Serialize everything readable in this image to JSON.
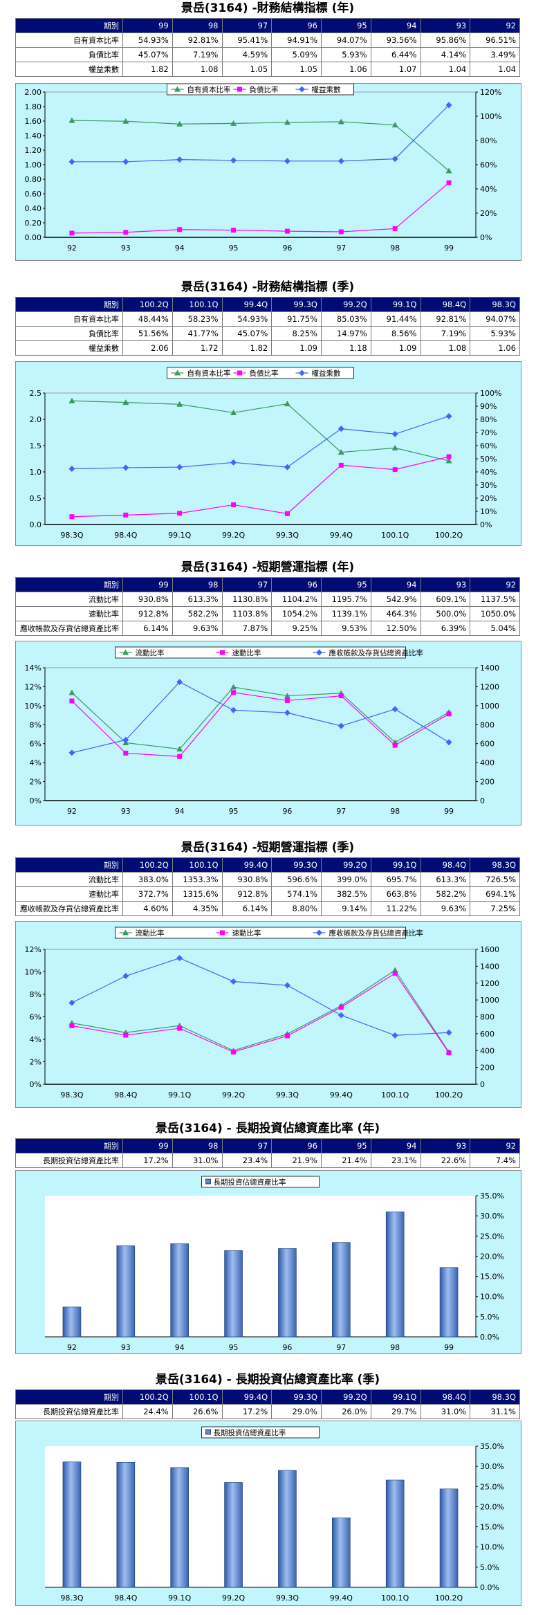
{
  "sections": [
    {
      "title": "景岳(3164) -財務結構指標 (年)",
      "header_label": "期別",
      "periods": [
        "99",
        "98",
        "97",
        "96",
        "95",
        "94",
        "93",
        "92"
      ],
      "rows": [
        {
          "label": "自有資本比率",
          "values": [
            "54.93%",
            "92.81%",
            "95.41%",
            "94.91%",
            "94.07%",
            "93.56%",
            "95.86%",
            "96.51%"
          ]
        },
        {
          "label": "負債比率",
          "values": [
            "45.07%",
            "7.19%",
            "4.59%",
            "5.09%",
            "5.93%",
            "6.44%",
            "4.14%",
            "3.49%"
          ]
        },
        {
          "label": "權益乘數",
          "values": [
            "1.82",
            "1.08",
            "1.05",
            "1.05",
            "1.06",
            "1.07",
            "1.04",
            "1.04"
          ]
        }
      ]
    },
    {
      "title": "景岳(3164) -財務結構指標 (季)",
      "header_label": "期別",
      "periods": [
        "100.2Q",
        "100.1Q",
        "99.4Q",
        "99.3Q",
        "99.2Q",
        "99.1Q",
        "98.4Q",
        "98.3Q"
      ],
      "rows": [
        {
          "label": "自有資本比率",
          "values": [
            "48.44%",
            "58.23%",
            "54.93%",
            "91.75%",
            "85.03%",
            "91.44%",
            "92.81%",
            "94.07%"
          ]
        },
        {
          "label": "負債比率",
          "values": [
            "51.56%",
            "41.77%",
            "45.07%",
            "8.25%",
            "14.97%",
            "8.56%",
            "7.19%",
            "5.93%"
          ]
        },
        {
          "label": "權益乘數",
          "values": [
            "2.06",
            "1.72",
            "1.82",
            "1.09",
            "1.18",
            "1.09",
            "1.08",
            "1.06"
          ]
        }
      ]
    },
    {
      "title": "景岳(3164) -短期營運指標 (年)",
      "header_label": "期別",
      "periods": [
        "99",
        "98",
        "97",
        "96",
        "95",
        "94",
        "93",
        "92"
      ],
      "rows": [
        {
          "label": "流動比率",
          "values": [
            "930.8%",
            "613.3%",
            "1130.8%",
            "1104.2%",
            "1195.7%",
            "542.9%",
            "609.1%",
            "1137.5%"
          ]
        },
        {
          "label": "速動比率",
          "values": [
            "912.8%",
            "582.2%",
            "1103.8%",
            "1054.2%",
            "1139.1%",
            "464.3%",
            "500.0%",
            "1050.0%"
          ]
        },
        {
          "label": "應收帳款及存貨佔總資產比率",
          "values": [
            "6.14%",
            "9.63%",
            "7.87%",
            "9.25%",
            "9.53%",
            "12.50%",
            "6.39%",
            "5.04%"
          ]
        }
      ]
    },
    {
      "title": "景岳(3164) -短期營運指標 (季)",
      "header_label": "期別",
      "periods": [
        "100.2Q",
        "100.1Q",
        "99.4Q",
        "99.3Q",
        "99.2Q",
        "99.1Q",
        "98.4Q",
        "98.3Q"
      ],
      "rows": [
        {
          "label": "流動比率",
          "values": [
            "383.0%",
            "1353.3%",
            "930.8%",
            "596.6%",
            "399.0%",
            "695.7%",
            "613.3%",
            "726.5%"
          ]
        },
        {
          "label": "速動比率",
          "values": [
            "372.7%",
            "1315.6%",
            "912.8%",
            "574.1%",
            "382.5%",
            "663.8%",
            "582.2%",
            "694.1%"
          ]
        },
        {
          "label": "應收帳款及存貨佔總資產比率",
          "values": [
            "4.60%",
            "4.35%",
            "6.14%",
            "8.80%",
            "9.14%",
            "11.22%",
            "9.63%",
            "7.25%"
          ]
        }
      ]
    },
    {
      "title": "景岳(3164) - 長期投資佔總資產比率 (年)",
      "header_label": "期別",
      "periods": [
        "99",
        "98",
        "97",
        "96",
        "95",
        "94",
        "93",
        "92"
      ],
      "rows": [
        {
          "label": "長期投資佔總資產比率",
          "values": [
            "17.2%",
            "31.0%",
            "23.4%",
            "21.9%",
            "21.4%",
            "23.1%",
            "22.6%",
            "7.4%"
          ]
        }
      ]
    },
    {
      "title": "景岳(3164) - 長期投資佔總資產比率 (季)",
      "header_label": "期別",
      "periods": [
        "100.2Q",
        "100.1Q",
        "99.4Q",
        "99.3Q",
        "99.2Q",
        "99.1Q",
        "98.4Q",
        "98.3Q"
      ],
      "rows": [
        {
          "label": "長期投資佔總資產比率",
          "values": [
            "24.4%",
            "26.6%",
            "17.2%",
            "29.0%",
            "26.0%",
            "29.7%",
            "31.0%",
            "31.1%"
          ]
        }
      ]
    }
  ],
  "chart_data": [
    {
      "type": "line",
      "categories": [
        "92",
        "93",
        "94",
        "95",
        "96",
        "97",
        "98",
        "99"
      ],
      "y_left": {
        "min": 0,
        "max": 2.0,
        "step": 0.2,
        "ticks": [
          "0.00",
          "0.20",
          "0.40",
          "0.60",
          "0.80",
          "1.00",
          "1.20",
          "1.40",
          "1.60",
          "1.80",
          "2.00"
        ]
      },
      "y_right": {
        "min": 0,
        "max": 120,
        "step": 20,
        "ticks": [
          "0%",
          "20%",
          "40%",
          "60%",
          "80%",
          "100%",
          "120%"
        ]
      },
      "series": [
        {
          "name": "自有資本比率",
          "color": "#3a9a5e",
          "marker": "triangle",
          "axis": "right",
          "values": [
            96.51,
            95.86,
            93.56,
            94.07,
            94.91,
            95.41,
            92.81,
            54.93
          ]
        },
        {
          "name": "負債比率",
          "color": "#ff00ff",
          "marker": "square",
          "axis": "right",
          "values": [
            3.49,
            4.14,
            6.44,
            5.93,
            5.09,
            4.59,
            7.19,
            45.07
          ]
        },
        {
          "name": "權益乘數",
          "color": "#3f66ff",
          "marker": "diamond",
          "axis": "left",
          "values": [
            1.04,
            1.04,
            1.07,
            1.06,
            1.05,
            1.05,
            1.08,
            1.82
          ]
        }
      ]
    },
    {
      "type": "line",
      "categories": [
        "98.3Q",
        "98.4Q",
        "99.1Q",
        "99.2Q",
        "99.3Q",
        "99.4Q",
        "100.1Q",
        "100.2Q"
      ],
      "y_left": {
        "min": 0,
        "max": 2.5,
        "step": 0.5,
        "ticks": [
          "0.0",
          "0.5",
          "1.0",
          "1.5",
          "2.0",
          "2.5"
        ]
      },
      "y_right": {
        "min": 0,
        "max": 100,
        "step": 10,
        "ticks": [
          "0%",
          "10%",
          "20%",
          "30%",
          "40%",
          "50%",
          "60%",
          "70%",
          "80%",
          "90%",
          "100%"
        ]
      },
      "series": [
        {
          "name": "自有資本比率",
          "color": "#3a9a5e",
          "marker": "triangle",
          "axis": "right",
          "values": [
            94.07,
            92.81,
            91.44,
            85.03,
            91.75,
            54.93,
            58.23,
            48.44
          ]
        },
        {
          "name": "負債比率",
          "color": "#ff00ff",
          "marker": "square",
          "axis": "right",
          "values": [
            5.93,
            7.19,
            8.56,
            14.97,
            8.25,
            45.07,
            41.77,
            51.56
          ]
        },
        {
          "name": "權益乘數",
          "color": "#3f66ff",
          "marker": "diamond",
          "axis": "left",
          "values": [
            1.06,
            1.08,
            1.09,
            1.18,
            1.09,
            1.82,
            1.72,
            2.06
          ]
        }
      ]
    },
    {
      "type": "line",
      "categories": [
        "92",
        "93",
        "94",
        "95",
        "96",
        "97",
        "98",
        "99"
      ],
      "y_left": {
        "min": 0,
        "max": 14,
        "step": 2,
        "ticks": [
          "0%",
          "2%",
          "4%",
          "6%",
          "8%",
          "10%",
          "12%",
          "14%"
        ]
      },
      "y_right": {
        "min": 0,
        "max": 1400,
        "step": 200,
        "ticks": [
          "0",
          "200",
          "400",
          "600",
          "800",
          "1000",
          "1200",
          "1400"
        ]
      },
      "series": [
        {
          "name": "流動比率",
          "color": "#3a9a5e",
          "marker": "triangle",
          "axis": "right",
          "values": [
            1137.5,
            609.1,
            542.9,
            1195.7,
            1104.2,
            1130.8,
            613.3,
            930.8
          ]
        },
        {
          "name": "速動比率",
          "color": "#ff00ff",
          "marker": "square",
          "axis": "right",
          "values": [
            1050.0,
            500.0,
            464.3,
            1139.1,
            1054.2,
            1103.8,
            582.2,
            912.8
          ]
        },
        {
          "name": "應收帳款及存貨佔總資產比率",
          "color": "#3f66ff",
          "marker": "diamond",
          "axis": "left",
          "values": [
            5.04,
            6.39,
            12.5,
            9.53,
            9.25,
            7.87,
            9.63,
            6.14
          ]
        }
      ]
    },
    {
      "type": "line",
      "categories": [
        "98.3Q",
        "98.4Q",
        "99.1Q",
        "99.2Q",
        "99.3Q",
        "99.4Q",
        "100.1Q",
        "100.2Q"
      ],
      "y_left": {
        "min": 0,
        "max": 12,
        "step": 2,
        "ticks": [
          "0%",
          "2%",
          "4%",
          "6%",
          "8%",
          "10%",
          "12%"
        ]
      },
      "y_right": {
        "min": 0,
        "max": 1600,
        "step": 200,
        "ticks": [
          "0",
          "200",
          "400",
          "600",
          "800",
          "1000",
          "1200",
          "1400",
          "1600"
        ]
      },
      "series": [
        {
          "name": "流動比率",
          "color": "#3a9a5e",
          "marker": "triangle",
          "axis": "right",
          "values": [
            726.5,
            613.3,
            695.7,
            399.0,
            596.6,
            930.8,
            1353.3,
            383.0
          ]
        },
        {
          "name": "速動比率",
          "color": "#ff00ff",
          "marker": "square",
          "axis": "right",
          "values": [
            694.1,
            582.2,
            663.8,
            382.5,
            574.1,
            912.8,
            1315.6,
            372.7
          ]
        },
        {
          "name": "應收帳款及存貨佔總資產比率",
          "color": "#3f66ff",
          "marker": "diamond",
          "axis": "left",
          "values": [
            7.25,
            9.63,
            11.22,
            9.14,
            8.8,
            6.14,
            4.35,
            4.6
          ]
        }
      ]
    },
    {
      "type": "bar",
      "categories": [
        "92",
        "93",
        "94",
        "95",
        "96",
        "97",
        "98",
        "99"
      ],
      "y_right": {
        "min": 0,
        "max": 35,
        "step": 5,
        "ticks": [
          "0.0%",
          "5.0%",
          "10.0%",
          "15.0%",
          "20.0%",
          "25.0%",
          "30.0%",
          "35.0%"
        ]
      },
      "series": [
        {
          "name": "長期投資佔總資產比率",
          "color": "#5b86d6",
          "values": [
            7.4,
            22.6,
            23.1,
            21.4,
            21.9,
            23.4,
            31.0,
            17.2
          ]
        }
      ]
    },
    {
      "type": "bar",
      "categories": [
        "98.3Q",
        "98.4Q",
        "99.1Q",
        "99.2Q",
        "99.3Q",
        "99.4Q",
        "100.1Q",
        "100.2Q"
      ],
      "y_right": {
        "min": 0,
        "max": 35,
        "step": 5,
        "ticks": [
          "0.0%",
          "5.0%",
          "10.0%",
          "15.0%",
          "20.0%",
          "25.0%",
          "30.0%",
          "35.0%"
        ]
      },
      "series": [
        {
          "name": "長期投資佔總資產比率",
          "color": "#5b86d6",
          "values": [
            31.1,
            31.0,
            29.7,
            26.0,
            29.0,
            17.2,
            26.6,
            24.4
          ]
        }
      ]
    }
  ]
}
